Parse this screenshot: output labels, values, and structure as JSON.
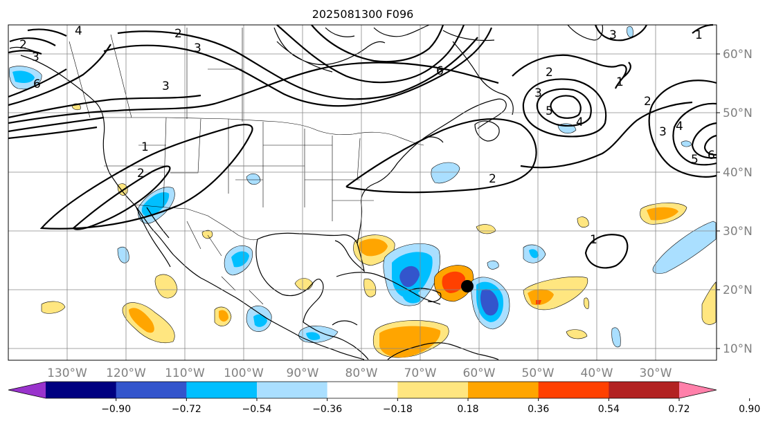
{
  "title": "2025081300 F096",
  "lon_labels": [
    "130°W",
    "120°W",
    "110°W",
    "100°W",
    "90°W",
    "80°W",
    "70°W",
    "60°W",
    "50°W",
    "40°W",
    "30°W"
  ],
  "lat_labels": [
    "10°N",
    "20°N",
    "30°N",
    "40°N",
    "50°N",
    "60°N"
  ],
  "colorbar": {
    "colors": [
      "#9933cc",
      "#000080",
      "#3355cc",
      "#00bfff",
      "#aadfff",
      "#ffffff",
      "#ffe680",
      "#ffa500",
      "#ff4000",
      "#b22222",
      "#ff80aa"
    ],
    "tick_labels": [
      "−0.90",
      "−0.72",
      "−0.54",
      "−0.36",
      "−0.18",
      "0.18",
      "0.36",
      "0.54",
      "0.72",
      "0.90"
    ]
  },
  "contour_labels": {
    "northwest_4": "4",
    "west_6": "6",
    "pacific_2": "2",
    "pacific_3": "3",
    "mountain_3": "3",
    "canada_2": "2",
    "canada_3": "3",
    "canada_6": "6",
    "mexico_1": "1",
    "mexico_2": "2",
    "atlantic_2": "2",
    "atlantic_3": "3",
    "atlantic_5": "5",
    "atlantic_4": "4",
    "atlantic_1": "1",
    "east_2": "2",
    "east_3": "3",
    "east_4": "4",
    "east_5": "5",
    "east_6": "6",
    "central_2": "2",
    "northeast_1": "1",
    "top_3": "3",
    "subtropic_1": "1"
  },
  "marker": {
    "label": "storm-center"
  }
}
